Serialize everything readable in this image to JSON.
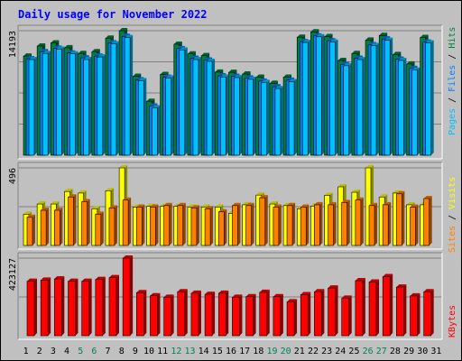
{
  "chart_data": [
    {
      "type": "bar",
      "panel": "hits-files-pages",
      "title": "Daily usage for November 2022",
      "ymax_label": "14193",
      "ymax": 14193,
      "categories": [
        "1",
        "2",
        "3",
        "4",
        "5",
        "6",
        "7",
        "8",
        "9",
        "10",
        "11",
        "12",
        "13",
        "14",
        "15",
        "16",
        "17",
        "18",
        "19",
        "20",
        "21",
        "22",
        "23",
        "24",
        "25",
        "26",
        "27",
        "28",
        "29",
        "30",
        "31"
      ],
      "weekend_days": [
        "5",
        "6",
        "12",
        "13",
        "19",
        "20",
        "26",
        "27"
      ],
      "series": [
        {
          "name": "Hits",
          "color": "#008040",
          "values": [
            11300,
            12450,
            12800,
            12250,
            11600,
            11800,
            13350,
            14193,
            9000,
            6150,
            9200,
            12650,
            11550,
            11350,
            9470,
            9450,
            9250,
            8900,
            8200,
            8900,
            13450,
            14060,
            13520,
            10800,
            11600,
            13120,
            13650,
            11480,
            10400,
            13420,
            null
          ]
        },
        {
          "name": "Files",
          "color": "#0080ff",
          "values": [
            11000,
            11800,
            12200,
            11650,
            11100,
            11300,
            12800,
            13550,
            8600,
            5600,
            8900,
            12150,
            11050,
            10850,
            9050,
            9000,
            8800,
            8450,
            7800,
            8550,
            12950,
            13600,
            13050,
            10350,
            11050,
            12600,
            13250,
            10950,
            9900,
            12900,
            null
          ]
        },
        {
          "name": "Pages",
          "color": "#00c0ff",
          "values": [
            10900,
            11600,
            12100,
            11550,
            10900,
            11200,
            12700,
            13400,
            8500,
            5400,
            8800,
            12000,
            10900,
            10700,
            8900,
            8850,
            8650,
            8300,
            7600,
            8400,
            12850,
            13500,
            12900,
            10200,
            10900,
            12500,
            13100,
            10800,
            9700,
            12800,
            null
          ]
        }
      ]
    },
    {
      "type": "bar",
      "panel": "visits-sites",
      "ymax_label": "496",
      "ymax": 496,
      "categories": [
        "1",
        "2",
        "3",
        "4",
        "5",
        "6",
        "7",
        "8",
        "9",
        "10",
        "11",
        "12",
        "13",
        "14",
        "15",
        "16",
        "17",
        "18",
        "19",
        "20",
        "21",
        "22",
        "23",
        "24",
        "25",
        "26",
        "27",
        "28",
        "29",
        "30",
        "31"
      ],
      "series": [
        {
          "name": "Visits",
          "color": "#ffff00",
          "values": [
            200,
            265,
            265,
            345,
            335,
            235,
            350,
            496,
            245,
            250,
            250,
            250,
            245,
            245,
            245,
            205,
            260,
            322,
            265,
            255,
            235,
            252,
            320,
            375,
            340,
            496,
            310,
            335,
            260,
            260,
            null
          ]
        },
        {
          "name": "Sites",
          "color": "#ff8000",
          "values": [
            180,
            225,
            225,
            310,
            280,
            200,
            240,
            290,
            245,
            245,
            255,
            255,
            240,
            235,
            215,
            255,
            255,
            305,
            245,
            255,
            245,
            260,
            260,
            275,
            290,
            255,
            260,
            330,
            245,
            300,
            null
          ]
        }
      ]
    },
    {
      "type": "bar",
      "panel": "kbytes",
      "ymax_label": "423127",
      "ymax": 423127,
      "categories": [
        "1",
        "2",
        "3",
        "4",
        "5",
        "6",
        "7",
        "8",
        "9",
        "10",
        "11",
        "12",
        "13",
        "14",
        "15",
        "16",
        "17",
        "18",
        "19",
        "20",
        "21",
        "22",
        "23",
        "24",
        "25",
        "26",
        "27",
        "28",
        "29",
        "30",
        "31"
      ],
      "series": [
        {
          "name": "KBytes",
          "color": "#ff0000",
          "values": [
            297000,
            303000,
            310000,
            297000,
            297000,
            307000,
            317000,
            423127,
            235000,
            218000,
            210000,
            240000,
            232000,
            226000,
            232000,
            210000,
            213000,
            237000,
            213000,
            185000,
            224000,
            240000,
            260000,
            205000,
            300000,
            293000,
            322000,
            265000,
            217000,
            240000,
            null
          ]
        }
      ]
    }
  ],
  "legend": {
    "top": [
      {
        "text": "Pages",
        "color": "#00c0ff"
      },
      {
        "text": " / ",
        "color": "#000000"
      },
      {
        "text": "Files",
        "color": "#0080ff"
      },
      {
        "text": " / ",
        "color": "#000000"
      },
      {
        "text": "Hits",
        "color": "#008040"
      }
    ],
    "mid": [
      {
        "text": "Sites",
        "color": "#ff8000"
      },
      {
        "text": " / ",
        "color": "#000000"
      },
      {
        "text": "Visits",
        "color": "#ffff00"
      }
    ],
    "bot": [
      {
        "text": "KBytes",
        "color": "#ff0000"
      }
    ]
  },
  "colors": {
    "weekday_label": "#000000",
    "weekend_label": "#00805c",
    "title": "#0000ff"
  }
}
